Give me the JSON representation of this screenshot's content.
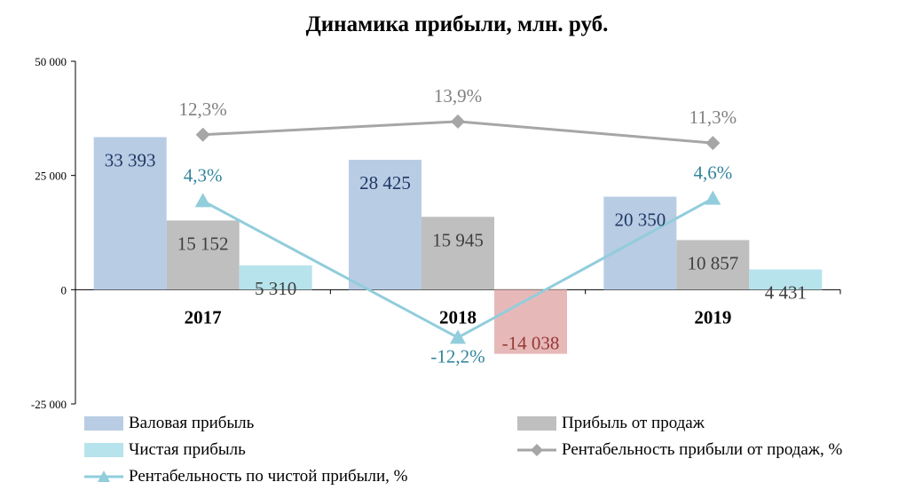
{
  "chart_data": {
    "type": "bar",
    "title": "Динамика прибыли, млн. руб.",
    "categories": [
      "2017",
      "2018",
      "2019"
    ],
    "ylim": [
      -25000,
      50000
    ],
    "yticks": [
      -25000,
      0,
      25000,
      50000
    ],
    "ytick_labels": [
      "-25 000",
      "0",
      "25 000",
      "50 000"
    ],
    "grid": false,
    "legend_placement": "bottom",
    "series": [
      {
        "name": "Валовая прибыль",
        "kind": "bar",
        "color": "#b8cce4",
        "label_color": "#1f3864",
        "values": [
          33393,
          28425,
          20350
        ],
        "labels": [
          "33 393",
          "28 425",
          "20 350"
        ]
      },
      {
        "name": "Прибыль от продаж",
        "kind": "bar",
        "color": "#bfbfbf",
        "label_color": "#404040",
        "values": [
          15152,
          15945,
          10857
        ],
        "labels": [
          "15 152",
          "15 945",
          "10 857"
        ]
      },
      {
        "name": "Чистая прибыль",
        "kind": "bar",
        "color": "#b7e3ec",
        "neg_color": "#e6b9b8",
        "label_color": "#404040",
        "neg_label_color": "#953735",
        "values": [
          5310,
          -14038,
          4431
        ],
        "labels": [
          "5 310",
          "-14 038",
          "4 431"
        ]
      },
      {
        "name": "Рентабельность прибыли от продаж, %",
        "kind": "line",
        "marker": "diamond",
        "color": "#a6a6a6",
        "label_color": "#808080",
        "values": [
          12.3,
          13.9,
          11.3
        ],
        "labels": [
          "12,3%",
          "13,9%",
          "11,3%"
        ]
      },
      {
        "name": "Рентабельность по чистой прибыли, %",
        "kind": "line",
        "marker": "triangle",
        "color": "#92cddc",
        "label_color": "#31849b",
        "values": [
          4.3,
          -12.2,
          4.6
        ],
        "labels": [
          "4,3%",
          "-12,2%",
          "4,6%"
        ]
      }
    ]
  }
}
